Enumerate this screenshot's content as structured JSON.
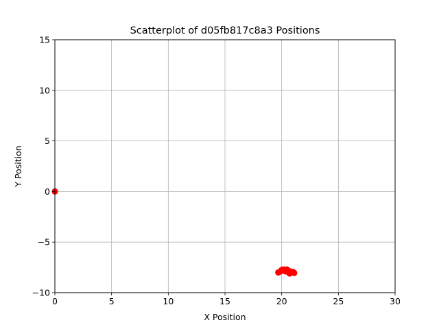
{
  "chart_data": {
    "type": "scatter",
    "title": "Scatterplot of d05fb817c8a3 Positions",
    "xlabel": "X Position",
    "ylabel": "Y Position",
    "xlim": [
      0,
      30
    ],
    "ylim": [
      -10,
      15
    ],
    "xticks": [
      0,
      5,
      10,
      15,
      20,
      25,
      30
    ],
    "yticks": [
      -10,
      -5,
      0,
      5,
      10,
      15
    ],
    "xtick_labels": [
      "0",
      "5",
      "10",
      "15",
      "20",
      "25",
      "30"
    ],
    "ytick_labels": [
      "−10",
      "−5",
      "0",
      "5",
      "10",
      "15"
    ],
    "grid": true,
    "marker_color": "#ff0000",
    "points": [
      {
        "x": 0,
        "y": 0
      },
      {
        "x": 19.7,
        "y": -8.0
      },
      {
        "x": 19.9,
        "y": -7.9
      },
      {
        "x": 20.0,
        "y": -7.75
      },
      {
        "x": 20.15,
        "y": -7.7
      },
      {
        "x": 20.3,
        "y": -7.75
      },
      {
        "x": 20.45,
        "y": -7.7
      },
      {
        "x": 20.55,
        "y": -7.8
      },
      {
        "x": 20.6,
        "y": -7.95
      },
      {
        "x": 20.75,
        "y": -7.9
      },
      {
        "x": 20.85,
        "y": -8.0
      },
      {
        "x": 21.0,
        "y": -7.95
      },
      {
        "x": 21.1,
        "y": -8.05
      },
      {
        "x": 20.7,
        "y": -8.1
      },
      {
        "x": 20.35,
        "y": -7.9
      }
    ]
  }
}
